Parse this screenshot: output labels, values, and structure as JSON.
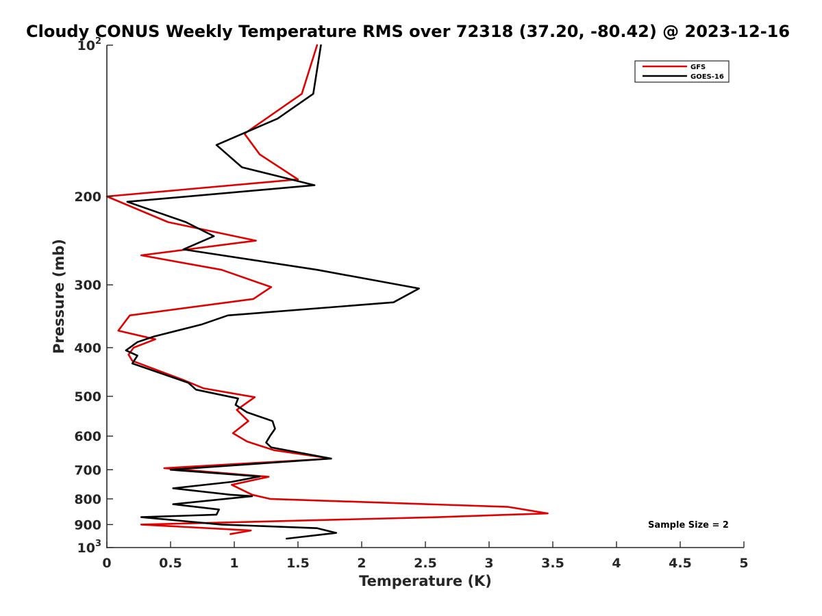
{
  "chart_data": {
    "type": "line",
    "title": "Cloudy CONUS Weekly Temperature RMS over 72318 (37.20, -80.42) @ 2023-12-16",
    "xlabel": "Temperature (K)",
    "ylabel": "Pressure (mb)",
    "xlim": [
      0,
      5
    ],
    "ylim": [
      100,
      1000
    ],
    "y_scale": "log",
    "y_reversed": true,
    "x_ticks": [
      0,
      0.5,
      1,
      1.5,
      2,
      2.5,
      3,
      3.5,
      4,
      4.5,
      5
    ],
    "x_tick_labels": [
      "0",
      "0.5",
      "1",
      "1.5",
      "2",
      "2.5",
      "3",
      "3.5",
      "4",
      "4.5",
      "5"
    ],
    "y_ticks": [
      100,
      200,
      300,
      400,
      500,
      600,
      700,
      800,
      900,
      1000
    ],
    "y_tick_labels": [
      {
        "base": "10",
        "exp": "2"
      },
      {
        "base": "200",
        "exp": ""
      },
      {
        "base": "300",
        "exp": ""
      },
      {
        "base": "400",
        "exp": ""
      },
      {
        "base": "500",
        "exp": ""
      },
      {
        "base": "600",
        "exp": ""
      },
      {
        "base": "700",
        "exp": ""
      },
      {
        "base": "800",
        "exp": ""
      },
      {
        "base": "900",
        "exp": ""
      },
      {
        "base": "10",
        "exp": "3"
      }
    ],
    "grid": false,
    "legend_position": "top-right",
    "annotation": "Sample Size = 2",
    "series": [
      {
        "name": "GFS",
        "color": "#e00000",
        "points": [
          [
            1.65,
            100
          ],
          [
            1.53,
            125
          ],
          [
            1.08,
            150
          ],
          [
            1.2,
            165
          ],
          [
            1.5,
            185
          ],
          [
            0.0,
            200
          ],
          [
            0.48,
            225
          ],
          [
            1.17,
            245
          ],
          [
            0.27,
            262
          ],
          [
            0.9,
            280
          ],
          [
            1.29,
            303
          ],
          [
            1.15,
            320
          ],
          [
            0.18,
            345
          ],
          [
            0.09,
            370
          ],
          [
            0.38,
            385
          ],
          [
            0.21,
            400
          ],
          [
            0.17,
            413
          ],
          [
            0.2,
            425
          ],
          [
            0.61,
            465
          ],
          [
            0.76,
            482
          ],
          [
            1.16,
            502
          ],
          [
            1.02,
            532
          ],
          [
            1.11,
            560
          ],
          [
            0.99,
            592
          ],
          [
            1.1,
            615
          ],
          [
            1.31,
            640
          ],
          [
            1.76,
            665
          ],
          [
            0.45,
            695
          ],
          [
            1.27,
            723
          ],
          [
            0.98,
            750
          ],
          [
            1.14,
            785
          ],
          [
            1.28,
            800
          ],
          [
            3.15,
            830
          ],
          [
            3.46,
            855
          ],
          [
            2.6,
            870
          ],
          [
            0.27,
            900
          ],
          [
            1.13,
            925
          ],
          [
            0.97,
            940
          ]
        ]
      },
      {
        "name": "GOES-16",
        "color": "#000000",
        "points": [
          [
            1.68,
            100
          ],
          [
            1.62,
            125
          ],
          [
            1.34,
            140
          ],
          [
            0.86,
            158
          ],
          [
            1.06,
            175
          ],
          [
            1.63,
            190
          ],
          [
            0.16,
            205
          ],
          [
            0.62,
            225
          ],
          [
            0.84,
            240
          ],
          [
            0.6,
            255
          ],
          [
            1.65,
            280
          ],
          [
            2.45,
            305
          ],
          [
            2.25,
            325
          ],
          [
            0.95,
            345
          ],
          [
            0.74,
            360
          ],
          [
            0.37,
            380
          ],
          [
            0.24,
            390
          ],
          [
            0.15,
            405
          ],
          [
            0.24,
            415
          ],
          [
            0.2,
            430
          ],
          [
            0.64,
            470
          ],
          [
            0.7,
            485
          ],
          [
            1.03,
            505
          ],
          [
            1.01,
            520
          ],
          [
            1.1,
            538
          ],
          [
            1.3,
            560
          ],
          [
            1.32,
            580
          ],
          [
            1.28,
            600
          ],
          [
            1.25,
            618
          ],
          [
            1.29,
            632
          ],
          [
            1.76,
            665
          ],
          [
            0.5,
            700
          ],
          [
            1.2,
            722
          ],
          [
            0.98,
            740
          ],
          [
            0.52,
            762
          ],
          [
            0.97,
            785
          ],
          [
            1.14,
            790
          ],
          [
            0.52,
            820
          ],
          [
            0.88,
            840
          ],
          [
            0.86,
            860
          ],
          [
            0.27,
            870
          ],
          [
            0.9,
            900
          ],
          [
            1.65,
            915
          ],
          [
            1.8,
            935
          ],
          [
            1.41,
            960
          ]
        ]
      }
    ]
  }
}
